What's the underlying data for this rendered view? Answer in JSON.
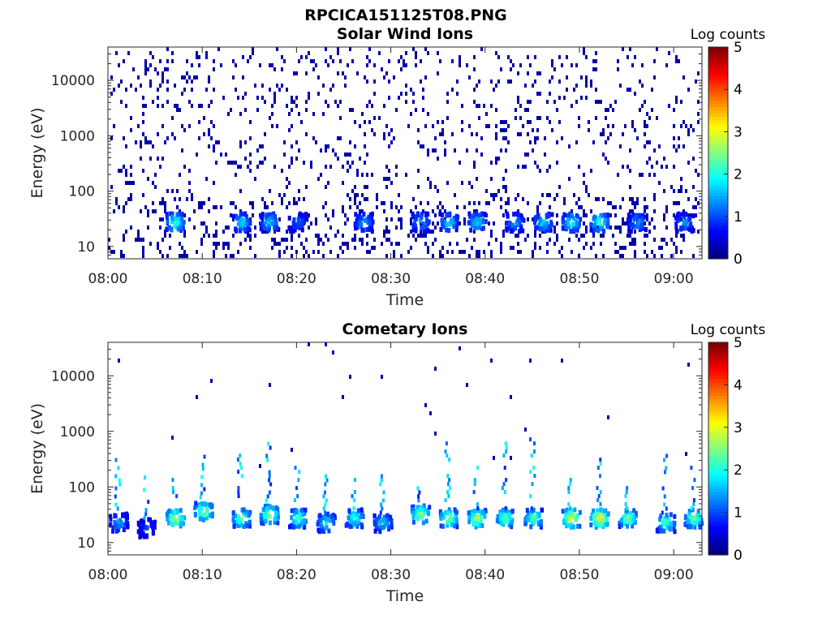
{
  "figure": {
    "title": "RPCICA151125T08.PNG"
  },
  "chart_data": [
    {
      "type": "heatmap",
      "title": "Solar Wind Ions",
      "xlabel": "Time",
      "ylabel": "Energy (eV)",
      "x_ticks": [
        "08:00",
        "08:10",
        "08:20",
        "08:30",
        "08:40",
        "08:50",
        "09:00"
      ],
      "y_ticks": [
        "10",
        "100",
        "1000",
        "10000"
      ],
      "y_scale": "log",
      "ylim": [
        6,
        40000
      ],
      "xlim": [
        "08:00",
        "09:03"
      ],
      "colorbar": {
        "label": "Log counts",
        "range": [
          0,
          5
        ],
        "ticks": [
          "0",
          "1",
          "2",
          "3",
          "4",
          "5"
        ],
        "colormap": "jet"
      },
      "bright_bursts": [
        {
          "time": "08:07",
          "energy": 30,
          "log_counts": 2.2
        },
        {
          "time": "08:14",
          "energy": 30,
          "log_counts": 1.8
        },
        {
          "time": "08:17",
          "energy": 30,
          "log_counts": 1.8
        },
        {
          "time": "08:20",
          "energy": 30,
          "log_counts": 1.2
        },
        {
          "time": "08:27",
          "energy": 30,
          "log_counts": 1.5
        },
        {
          "time": "08:33",
          "energy": 30,
          "log_counts": 1.6
        },
        {
          "time": "08:36",
          "energy": 30,
          "log_counts": 1.8
        },
        {
          "time": "08:39",
          "energy": 30,
          "log_counts": 1.8
        },
        {
          "time": "08:43",
          "energy": 30,
          "log_counts": 1.5
        },
        {
          "time": "08:46",
          "energy": 30,
          "log_counts": 1.8
        },
        {
          "time": "08:49",
          "energy": 30,
          "log_counts": 2.0
        },
        {
          "time": "08:52",
          "energy": 30,
          "log_counts": 2.2
        },
        {
          "time": "08:56",
          "energy": 30,
          "log_counts": 1.5
        },
        {
          "time": "09:01",
          "energy": 30,
          "log_counts": 1.4
        }
      ],
      "grid": false
    },
    {
      "type": "heatmap",
      "title": "Cometary Ions",
      "xlabel": "Time",
      "ylabel": "Energy (eV)",
      "x_ticks": [
        "08:00",
        "08:10",
        "08:20",
        "08:30",
        "08:40",
        "08:50",
        "09:00"
      ],
      "y_ticks": [
        "10",
        "100",
        "1000",
        "10000"
      ],
      "y_scale": "log",
      "ylim": [
        6,
        40000
      ],
      "xlim": [
        "08:00",
        "09:03"
      ],
      "colorbar": {
        "label": "Log counts",
        "range": [
          0,
          5
        ],
        "ticks": [
          "0",
          "1",
          "2",
          "3",
          "4",
          "5"
        ],
        "colormap": "jet"
      },
      "bright_bursts": [
        {
          "time": "08:01",
          "energy": 25,
          "log_counts": 1.5
        },
        {
          "time": "08:04",
          "energy": 20,
          "log_counts": 1.0
        },
        {
          "time": "08:07",
          "energy": 30,
          "log_counts": 3.0
        },
        {
          "time": "08:10",
          "energy": 40,
          "log_counts": 2.8
        },
        {
          "time": "08:14",
          "energy": 30,
          "log_counts": 2.6
        },
        {
          "time": "08:17",
          "energy": 35,
          "log_counts": 2.8
        },
        {
          "time": "08:20",
          "energy": 30,
          "log_counts": 2.4
        },
        {
          "time": "08:23",
          "energy": 25,
          "log_counts": 2.0
        },
        {
          "time": "08:26",
          "energy": 30,
          "log_counts": 2.2
        },
        {
          "time": "08:29",
          "energy": 25,
          "log_counts": 1.8
        },
        {
          "time": "08:33",
          "energy": 35,
          "log_counts": 2.8
        },
        {
          "time": "08:36",
          "energy": 30,
          "log_counts": 2.8
        },
        {
          "time": "08:39",
          "energy": 30,
          "log_counts": 3.0
        },
        {
          "time": "08:42",
          "energy": 30,
          "log_counts": 2.6
        },
        {
          "time": "08:45",
          "energy": 30,
          "log_counts": 2.5
        },
        {
          "time": "08:49",
          "energy": 30,
          "log_counts": 3.3
        },
        {
          "time": "08:52",
          "energy": 30,
          "log_counts": 3.4
        },
        {
          "time": "08:55",
          "energy": 30,
          "log_counts": 2.6
        },
        {
          "time": "08:59",
          "energy": 25,
          "log_counts": 2.4
        },
        {
          "time": "09:02",
          "energy": 30,
          "log_counts": 2.6
        }
      ],
      "grid": false
    }
  ]
}
